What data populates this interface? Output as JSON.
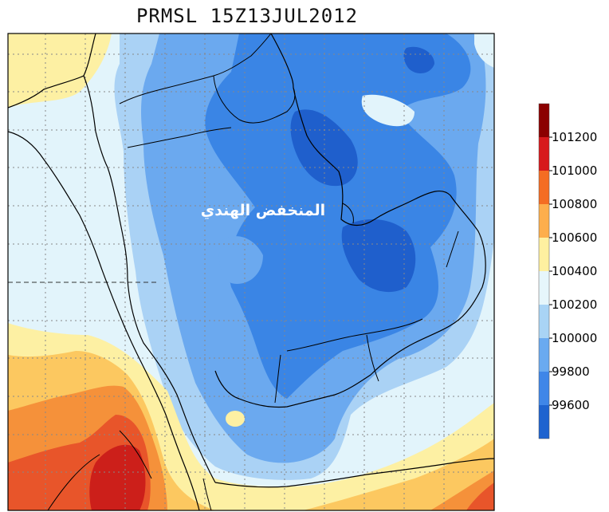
{
  "title": "PRMSL  15Z13JUL2012",
  "annotation": "المنخفض الهندي",
  "colorbar": {
    "labels": [
      "101200",
      "101000",
      "100800",
      "100600",
      "100400",
      "100200",
      "100000",
      "99800",
      "99600"
    ],
    "colors": [
      "#8b0000",
      "#d7191c",
      "#f46d23",
      "#fdae4c",
      "#fef0a0",
      "#e6f6fb",
      "#a9d4f5",
      "#6aaaf0",
      "#3f86e8",
      "#1e63cf"
    ]
  },
  "palette": {
    "darkblue": "#1f5fcc",
    "blue": "#3a85e5",
    "midblue": "#6ba9ef",
    "lightblue": "#aad2f5",
    "paleblue": "#e2f4fb",
    "paleyellow": "#fdf0a3",
    "yellow": "#fcc860",
    "orange": "#f5913a",
    "redorange": "#e8552a",
    "red": "#cc1f1a"
  }
}
